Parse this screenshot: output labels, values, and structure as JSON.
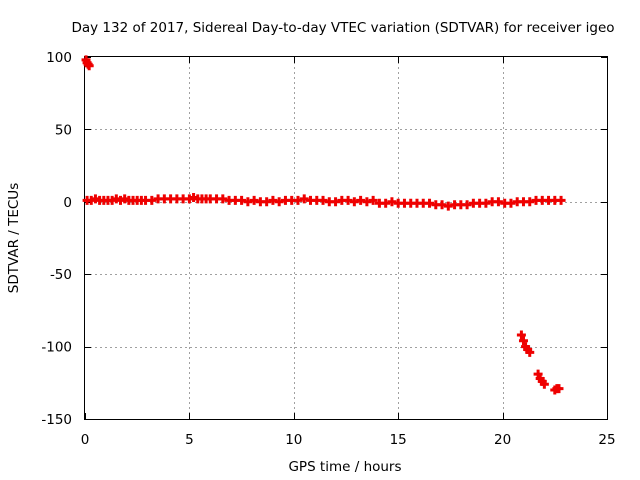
{
  "chart_data": {
    "type": "scatter",
    "title": "Day 132 of 2017, Sidereal Day-to-day VTEC variation (SDTVAR) for receiver igeo",
    "xlabel": "GPS time / hours",
    "ylabel": "SDTVAR / TECUs",
    "xlim": [
      0,
      25
    ],
    "ylim": [
      -150,
      100
    ],
    "xticks": [
      0,
      5,
      10,
      15,
      20,
      25
    ],
    "xtick_labels": [
      "0",
      "5",
      "10",
      "15",
      "20",
      "25"
    ],
    "yticks": [
      -150,
      -100,
      -50,
      0,
      50,
      100
    ],
    "ytick_labels": [
      "-150",
      "-100",
      "-50",
      "0",
      "50",
      "100"
    ],
    "grid": true,
    "marker_color": "#ee0000",
    "series": [
      {
        "name": "SDTVAR",
        "x": [
          0.05,
          0.1,
          0.15,
          0.2,
          0.1,
          0.3,
          0.5,
          0.7,
          0.9,
          1.1,
          1.3,
          1.5,
          1.7,
          1.9,
          2.1,
          2.3,
          2.5,
          2.7,
          2.9,
          3.2,
          3.5,
          3.8,
          4.1,
          4.4,
          4.7,
          5.0,
          5.2,
          5.4,
          5.6,
          5.8,
          6.0,
          6.3,
          6.6,
          6.9,
          7.2,
          7.5,
          7.8,
          8.1,
          8.4,
          8.7,
          9.0,
          9.3,
          9.6,
          9.9,
          10.2,
          10.5,
          10.8,
          11.1,
          11.4,
          11.7,
          12.0,
          12.3,
          12.6,
          12.9,
          13.2,
          13.5,
          13.8,
          14.1,
          14.4,
          14.7,
          15.0,
          15.3,
          15.6,
          15.9,
          16.2,
          16.5,
          16.8,
          17.1,
          17.4,
          17.7,
          18.0,
          18.3,
          18.6,
          18.9,
          19.2,
          19.5,
          19.8,
          20.1,
          20.4,
          20.7,
          21.0,
          21.3,
          21.6,
          21.9,
          22.2,
          22.5,
          22.8,
          20.9,
          21.0,
          21.1,
          21.2,
          21.3,
          21.7,
          21.8,
          21.9,
          22.0,
          22.5,
          22.6,
          22.7
        ],
        "y": [
          98,
          96,
          95,
          94,
          1,
          1,
          2,
          1,
          1,
          1,
          1,
          2,
          1,
          2,
          1,
          1,
          1,
          1,
          1,
          1,
          2,
          2,
          2,
          2,
          2,
          2,
          3,
          2,
          2,
          2,
          2,
          2,
          2,
          1,
          1,
          1,
          0,
          1,
          0,
          0,
          1,
          0,
          1,
          1,
          1,
          2,
          1,
          1,
          1,
          0,
          0,
          1,
          1,
          0,
          1,
          0,
          1,
          -1,
          -1,
          0,
          -1,
          -1,
          -1,
          -1,
          -1,
          -1,
          -2,
          -2,
          -3,
          -2,
          -2,
          -2,
          -1,
          -1,
          -1,
          0,
          0,
          -1,
          -1,
          0,
          0,
          0,
          1,
          1,
          1,
          1,
          1,
          -92,
          -96,
          -100,
          -102,
          -104,
          -119,
          -122,
          -124,
          -126,
          -130,
          -129,
          -129
        ]
      }
    ]
  }
}
